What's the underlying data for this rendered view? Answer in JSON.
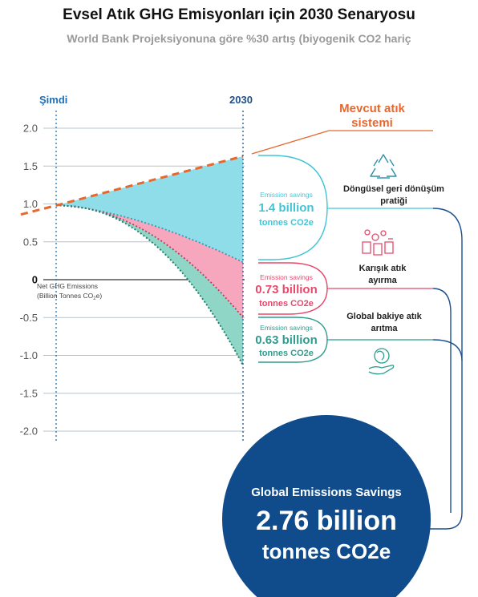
{
  "header": {
    "title": "Evsel Atık GHG Emisyonları için 2030 Senaryosu",
    "subtitle": "World Bank Projeksiyonuna göre %30 artış (biyogenik CO2 hariç"
  },
  "chart_data": {
    "type": "area",
    "x_labels": [
      "Şimdi",
      "2030"
    ],
    "y_ticks": [
      "2.0",
      "1.5",
      "1.0",
      "0.5",
      "0",
      "-0.5",
      "-1.0",
      "-1.5",
      "-2.0"
    ],
    "ylim": [
      -2.0,
      2.0
    ],
    "ylabel": "Net GHG Emissions (Billion Tonnes CO2e)",
    "ylabel_line1": "Net GHG Emissions",
    "ylabel_line2_pre": "(Billion Tonnes CO",
    "ylabel_sub": "2",
    "ylabel_line2_post": "e)",
    "grid": true,
    "start_value": 0.98,
    "series": [
      {
        "name": "Mevcut atık sistemi",
        "start": 0.98,
        "end": 1.63,
        "color": "#e8672c",
        "style": "dashed"
      },
      {
        "name": "Döngüsel geri dönüşüm pratiği",
        "start": 0.98,
        "end": 0.23,
        "color": "#41c5d6"
      },
      {
        "name": "Karışık atık ayırma",
        "start": 0.98,
        "end": -0.5,
        "color": "#f26a86"
      },
      {
        "name": "Global bakiye atık arıtma",
        "start": 0.98,
        "end": -1.13,
        "color": "#2eb5a0"
      }
    ],
    "baseline_label_line1": "Mevcut atık",
    "baseline_label_line2": "sistemi"
  },
  "savings": [
    {
      "label": "Emission savings",
      "value": "1.4 billion",
      "unit": "tonnes CO2e",
      "color": "#41c5d6",
      "category_line1": "Döngüsel geri dönüşüm",
      "category_line2": "pratiği",
      "icon": "recycle-icon"
    },
    {
      "label": "Emission savings",
      "value": "0.73 billion",
      "unit": "tonnes CO2e",
      "color": "#e8486b",
      "category_line1": "Karışık atık",
      "category_line2": "ayırma",
      "icon": "waste-sorting-icon"
    },
    {
      "label": "Emission savings",
      "value": "0.63 billion",
      "unit": "tonnes CO2e",
      "color": "#2e9c8e",
      "category_line1": "Global bakiye atık",
      "category_line2": "arıtma",
      "icon": "globe-hand-icon"
    }
  ],
  "total": {
    "label": "Global Emissions Savings",
    "value": "2.76 billion",
    "unit": "tonnes CO2e",
    "color": "#104c8c"
  },
  "colors": {
    "axis_label": "#1f6fb5",
    "tick": "#555555",
    "connector": "#1d4f8f"
  }
}
